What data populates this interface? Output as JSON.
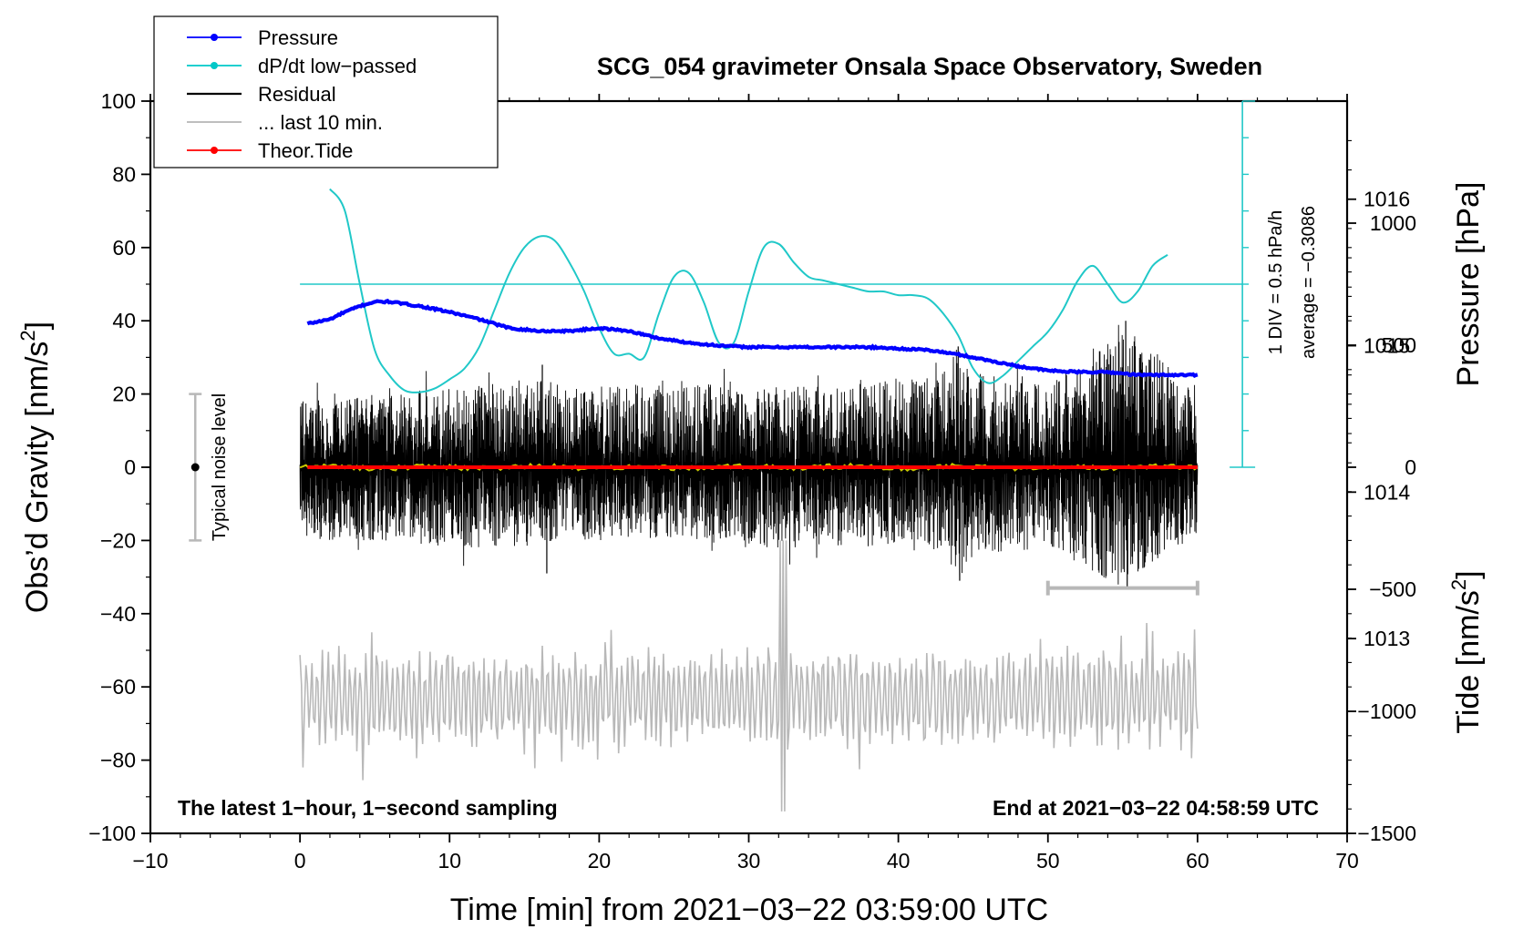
{
  "chart_data": {
    "type": "line",
    "title": "SCG_054 gravimeter Onsala Space Observatory, Sweden",
    "xlabel": "Time [min] from 2021−03−22 03:59:00 UTC",
    "ylabel_left": "Obs’d Gravity [nm/s",
    "ylabel_left_sup": "2",
    "ylabel_left_close": "]",
    "ylabel_right_pressure": "Pressure [hPa]",
    "ylabel_right_tide": "Tide [nm/s",
    "ylabel_right_tide_sup": "2",
    "ylabel_right_tide_close": "]",
    "xlim": [
      -10,
      70
    ],
    "ylim": [
      -100,
      100
    ],
    "x_ticks": [
      "−10",
      "0",
      "10",
      "20",
      "30",
      "40",
      "50",
      "60",
      "70"
    ],
    "x_tick_values": [
      -10,
      0,
      10,
      20,
      30,
      40,
      50,
      60,
      70
    ],
    "y_ticks": [
      "100",
      "80",
      "60",
      "40",
      "20",
      "0",
      "−20",
      "−40",
      "−60",
      "−80",
      "−100"
    ],
    "y_tick_values": [
      100,
      80,
      60,
      40,
      20,
      0,
      -20,
      -40,
      -60,
      -80,
      -100
    ],
    "pressure_axis": {
      "ticks": [
        "1016",
        "1015",
        "1014",
        "1013"
      ],
      "tick_values": [
        1016,
        1015,
        1014,
        1013
      ],
      "range_hpa": [
        1011.67,
        1016.67
      ]
    },
    "tide_axis": {
      "ticks": [
        "1000",
        "500",
        "0",
        "−500",
        "−1000",
        "−1500"
      ],
      "tick_values": [
        1000,
        500,
        0,
        -500,
        -1000,
        -1500
      ],
      "range": [
        -1500,
        1500
      ]
    },
    "dpdt_scale": {
      "label_div": "1 DIV = 0.5 hPa/h",
      "label_avg": "average = −0.3086",
      "reference_level_gravity_units": 50
    },
    "legend": [
      {
        "label": "Pressure",
        "color": "#0000ff",
        "marker": true
      },
      {
        "label": "dP/dt low−passed",
        "color": "#00c8c8",
        "marker": true
      },
      {
        "label": "Residual",
        "color": "#000000",
        "marker": false
      },
      {
        "label": "... last 10 min.",
        "color": "#b4b4b4",
        "marker": false
      },
      {
        "label": "Theor.Tide",
        "color": "#ff0000",
        "marker": true
      }
    ],
    "noise_label": "Typical noise level",
    "noise_bar": {
      "x": -7,
      "low": -20,
      "high": 20,
      "center": 0
    },
    "last10_bracket": {
      "x_start": 50,
      "x_end": 60,
      "level": -33
    },
    "note_left": "The latest 1−hour, 1−second sampling",
    "note_right": "End at 2021−03−22 04:58:59 UTC",
    "colors": {
      "pressure": "#0000ff",
      "dpdt": "#20c8c8",
      "residual": "#000000",
      "smooth": "#c8c800",
      "last10": "#b8b8b8",
      "tide": "#ff0000",
      "noise_bar": "#b8b8b8"
    },
    "series": [
      {
        "name": "Pressure (hPa)",
        "x": [
          0.5,
          2,
          3,
          4,
          5,
          6,
          8,
          10,
          12,
          14,
          16,
          18,
          20,
          22,
          24,
          26,
          28,
          30,
          32,
          34,
          36,
          38,
          40,
          42,
          44,
          46,
          48,
          50,
          52,
          54,
          56,
          58,
          60
        ],
        "values": [
          1015.15,
          1015.18,
          1015.23,
          1015.27,
          1015.3,
          1015.3,
          1015.27,
          1015.23,
          1015.18,
          1015.12,
          1015.1,
          1015.1,
          1015.12,
          1015.1,
          1015.05,
          1015.02,
          1015.0,
          1014.99,
          1014.99,
          1014.99,
          1014.99,
          1014.99,
          1014.98,
          1014.97,
          1014.94,
          1014.9,
          1014.86,
          1014.83,
          1014.82,
          1014.82,
          1014.8,
          1014.8,
          1014.8
        ]
      },
      {
        "name": "dP/dt low-passed (gravity-axis units)",
        "x": [
          2,
          3,
          4,
          5,
          6,
          7,
          8,
          9,
          10,
          11,
          12,
          13,
          14,
          15,
          16,
          17,
          18,
          19,
          20,
          21,
          22,
          23,
          24,
          25,
          26,
          27,
          28,
          29,
          30,
          31,
          32,
          33,
          34,
          35,
          36,
          37,
          38,
          39,
          40,
          41,
          42,
          43,
          44,
          45,
          46,
          47,
          48,
          49,
          50,
          51,
          52,
          53,
          54,
          55,
          56,
          57,
          58
        ],
        "values": [
          76,
          70,
          50,
          32,
          25,
          21,
          20.5,
          21.5,
          24,
          27,
          33,
          43,
          53,
          60,
          63,
          62,
          56,
          48,
          38,
          31,
          31,
          30,
          42,
          52,
          53,
          45,
          34,
          34,
          48,
          60,
          61,
          56,
          52,
          51,
          50,
          49,
          48,
          48,
          47,
          47,
          46,
          42,
          36,
          27,
          23,
          25,
          29,
          33,
          37,
          43,
          51,
          55,
          50,
          45,
          48,
          55,
          58
        ]
      },
      {
        "name": "Residual (nm/s2, 1-s sampling, summary envelope)",
        "x": [
          0,
          5,
          10,
          15,
          20,
          25,
          30,
          35,
          40,
          43,
          44,
          45,
          50,
          55,
          60
        ],
        "values": [
          0,
          0,
          0,
          0,
          0,
          0,
          0,
          0,
          0,
          0,
          0,
          0,
          0,
          0,
          0
        ],
        "envelope_high": [
          18,
          20,
          22,
          24,
          22,
          24,
          22,
          22,
          24,
          26,
          33,
          26,
          22,
          40,
          20
        ],
        "envelope_low": [
          -20,
          -20,
          -22,
          -22,
          -20,
          -20,
          -22,
          -22,
          -22,
          -24,
          -31,
          -24,
          -22,
          -33,
          -18
        ]
      },
      {
        "name": "Smoothed residual",
        "x": [
          0,
          10,
          20,
          30,
          40,
          50,
          60
        ],
        "values": [
          0,
          0,
          0,
          0,
          0,
          0,
          0
        ]
      },
      {
        "name": "... last 10 min. (gravity-axis units, offset -50)",
        "x_start": 0,
        "x_end": 60,
        "center": -63,
        "amplitude_typical": 14,
        "peak_max": -20,
        "peak_min": -94,
        "peak_at_min": 32.3
      },
      {
        "name": "Theor.Tide (nm/s2)",
        "x": [
          0.5,
          60
        ],
        "values": [
          0,
          0
        ]
      }
    ]
  }
}
